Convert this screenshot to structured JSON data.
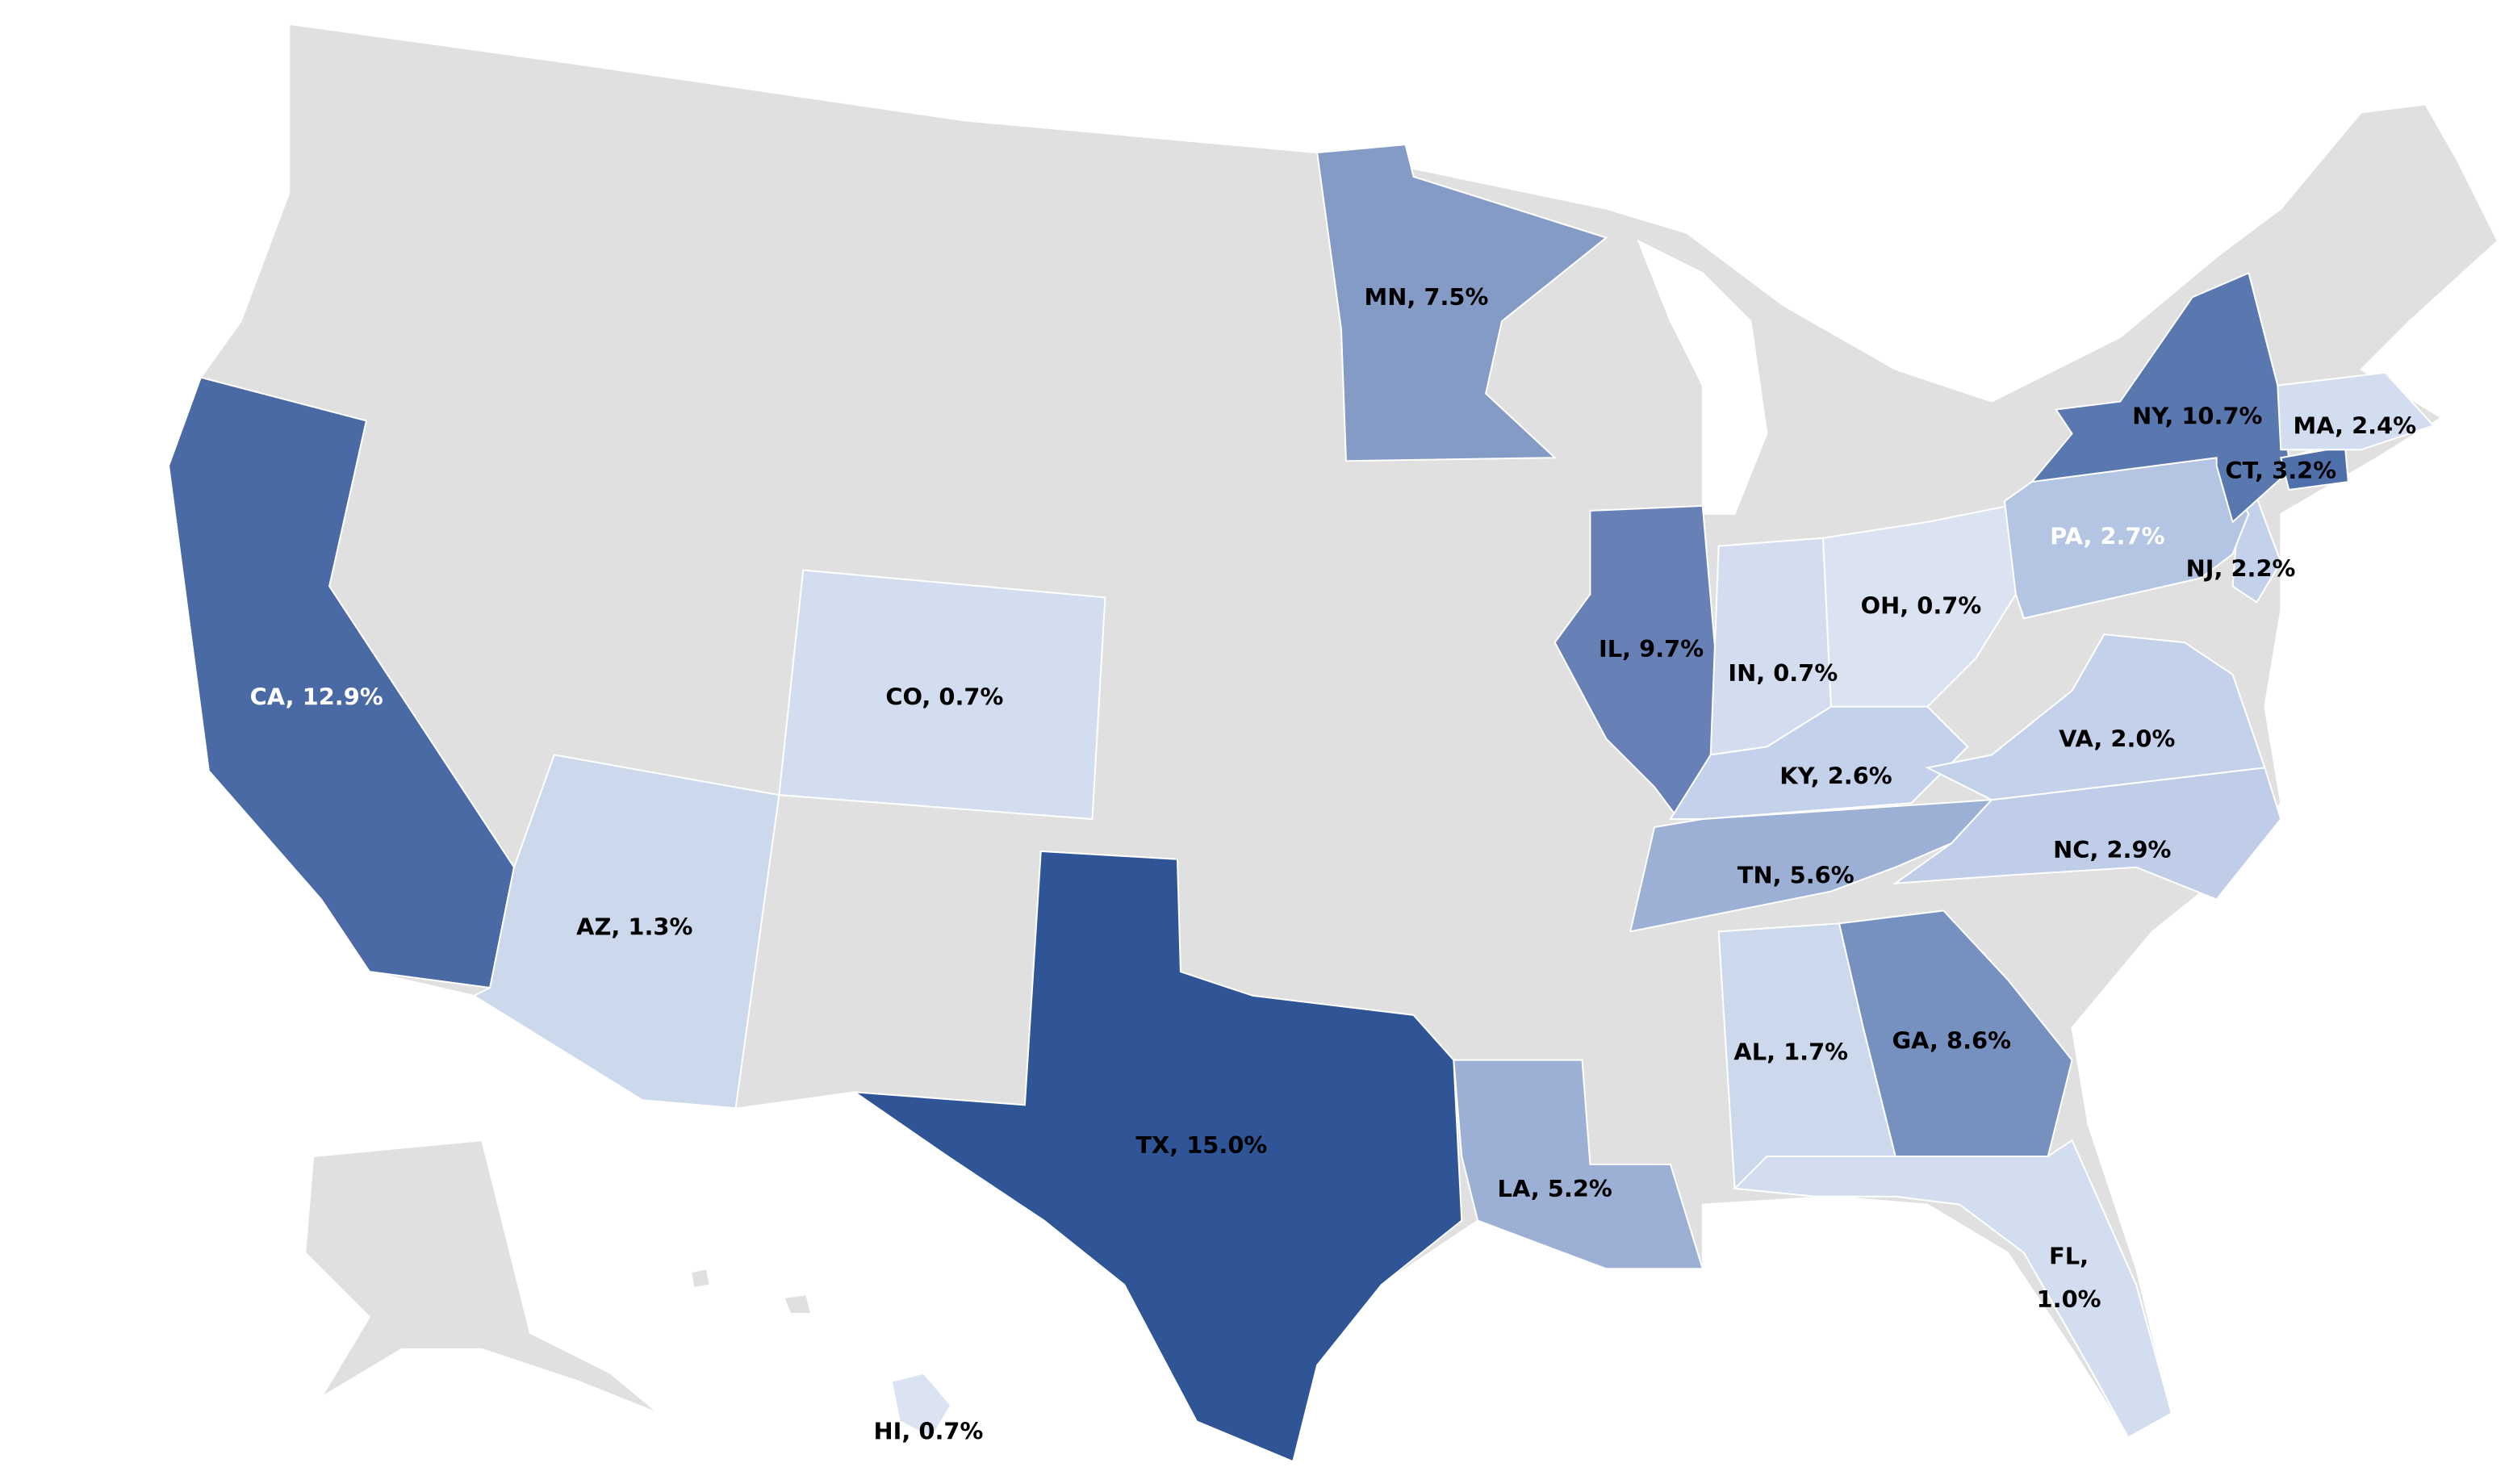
{
  "map": {
    "regions": [
      {
        "label": "CA, 12.9%",
        "value": 12.9,
        "color": "#4a6aa5",
        "label_color": "#ffffff"
      },
      {
        "label": "AZ, 1.3%",
        "value": 1.3,
        "color": "#ccd8ec",
        "label_color": "#000000"
      },
      {
        "label": "CO, 0.7%",
        "value": 0.7,
        "color": "#d3ddf0",
        "label_color": "#000000"
      },
      {
        "label": "TX, 15.0%",
        "value": 15.0,
        "color": "#2f5597",
        "label_color": "#000000"
      },
      {
        "label": "MN, 7.5%",
        "value": 7.5,
        "color": "#849bc6",
        "label_color": "#000000"
      },
      {
        "label": "IL, 9.7%",
        "value": 9.7,
        "color": "#6780b5",
        "label_color": "#000000"
      },
      {
        "label": "IN, 0.7%",
        "value": 0.7,
        "color": "#d4ddf0",
        "label_color": "#000000"
      },
      {
        "label": "OH, 0.7%",
        "value": 0.7,
        "color": "#dbe3f3",
        "label_color": "#000000"
      },
      {
        "label": "KY, 2.6%",
        "value": 2.6,
        "color": "#c4d1ea",
        "label_color": "#000000"
      },
      {
        "label": "TN, 5.6%",
        "value": 5.6,
        "color": "#9cafd4",
        "label_color": "#000000"
      },
      {
        "label": "NC, 2.9%",
        "value": 2.9,
        "color": "#bfcde8",
        "label_color": "#000000"
      },
      {
        "label": "VA, 2.0%",
        "value": 2.0,
        "color": "#c4d1ea",
        "label_color": "#000000"
      },
      {
        "label": "GA, 8.6%",
        "value": 8.6,
        "color": "#7690c0",
        "label_color": "#000000"
      },
      {
        "label": "AL, 1.7%",
        "value": 1.7,
        "color": "#ccd8ec",
        "label_color": "#000000"
      },
      {
        "label": [
          "FL,",
          "1.0%"
        ],
        "value": 1.0,
        "color": "#d3ddf0",
        "label_color": "#000000"
      },
      {
        "label": "LA, 5.2%",
        "value": 5.2,
        "color": "#9cafd4",
        "label_color": "#000000"
      },
      {
        "label": "PA, 2.7%",
        "value": 2.7,
        "color": "#b4c5e4",
        "label_color": "#ffffff"
      },
      {
        "label": "NJ, 2.2%",
        "value": 2.2,
        "color": "#c4d1ea",
        "label_color": "#000000"
      },
      {
        "label": "NY, 10.7%",
        "value": 10.7,
        "color": "#5a78b0",
        "label_color": "#000000"
      },
      {
        "label": "CT, 3.2%",
        "value": 3.2,
        "color": "#4f70ab",
        "label_color": "#000000"
      },
      {
        "label": "MA, 2.4%",
        "value": 2.4,
        "color": "#d3ddf0",
        "label_color": "#000000"
      },
      {
        "label": "HI, 0.7%",
        "value": 0.7,
        "color": "#dbe3f3",
        "label_color": "#000000"
      }
    ]
  }
}
